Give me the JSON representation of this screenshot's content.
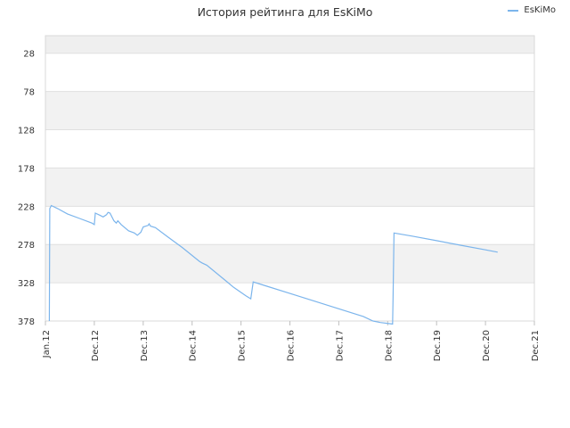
{
  "chart_data": {
    "type": "line",
    "title": "История рейтинга для EsKiMo",
    "xlabel": "",
    "ylabel": "",
    "y_reversed": true,
    "ylim": [
      5,
      378
    ],
    "y_ticks": [
      28,
      78,
      128,
      178,
      228,
      278,
      328,
      378
    ],
    "x_ticks": [
      "Jan.12",
      "Dec.12",
      "Dec.13",
      "Dec.14",
      "Dec.15",
      "Dec.16",
      "Dec.17",
      "Dec.18",
      "Dec.19",
      "Dec.20",
      "Dec.21"
    ],
    "xlim": [
      2012.0,
      2022.0
    ],
    "grid": true,
    "legend_position": "top-right",
    "series": [
      {
        "name": "EsKiMo",
        "color": "#7cb5ec",
        "points": [
          [
            2012.08,
            378
          ],
          [
            2012.09,
            231
          ],
          [
            2012.12,
            227
          ],
          [
            2012.25,
            231
          ],
          [
            2012.45,
            238
          ],
          [
            2012.7,
            244
          ],
          [
            2012.95,
            250
          ],
          [
            2013.0,
            252
          ],
          [
            2013.02,
            237
          ],
          [
            2013.12,
            240
          ],
          [
            2013.18,
            242
          ],
          [
            2013.25,
            239
          ],
          [
            2013.28,
            236
          ],
          [
            2013.32,
            237
          ],
          [
            2013.4,
            247
          ],
          [
            2013.45,
            250
          ],
          [
            2013.48,
            247
          ],
          [
            2013.55,
            252
          ],
          [
            2013.7,
            260
          ],
          [
            2013.82,
            263
          ],
          [
            2013.88,
            266
          ],
          [
            2013.95,
            262
          ],
          [
            2014.0,
            255
          ],
          [
            2014.1,
            253
          ],
          [
            2014.12,
            251
          ],
          [
            2014.15,
            254
          ],
          [
            2014.25,
            256
          ],
          [
            2014.5,
            268
          ],
          [
            2014.8,
            282
          ],
          [
            2015.15,
            300
          ],
          [
            2015.2,
            302
          ],
          [
            2015.3,
            305
          ],
          [
            2015.7,
            326
          ],
          [
            2015.85,
            334
          ],
          [
            2016.1,
            345
          ],
          [
            2016.2,
            349
          ],
          [
            2016.25,
            327
          ],
          [
            2016.5,
            332
          ],
          [
            2017.0,
            342
          ],
          [
            2017.5,
            352
          ],
          [
            2018.0,
            362
          ],
          [
            2018.5,
            372
          ],
          [
            2018.7,
            378
          ],
          [
            2018.85,
            380
          ],
          [
            2019.1,
            382
          ],
          [
            2019.11,
            350
          ],
          [
            2019.13,
            263
          ],
          [
            2019.5,
            267
          ],
          [
            2020.0,
            273
          ],
          [
            2020.5,
            279
          ],
          [
            2021.0,
            285
          ],
          [
            2021.25,
            288
          ]
        ]
      }
    ]
  }
}
